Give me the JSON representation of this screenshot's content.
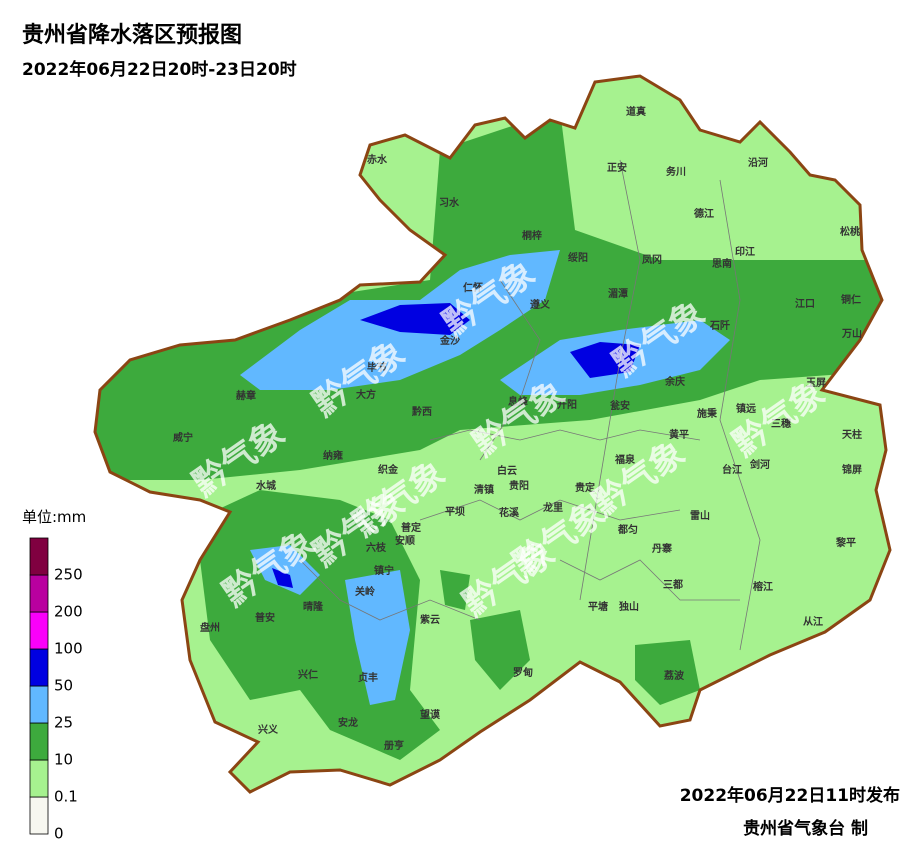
{
  "header": {
    "title": "贵州省降水落区预报图",
    "subtitle": "2022年06月22日20时-23日20时"
  },
  "legend": {
    "unit": "单位:mm",
    "levels": [
      {
        "value": 0,
        "color": "#f7f7f0"
      },
      {
        "value": 0.1,
        "color": "#a6f28f"
      },
      {
        "value": 10,
        "color": "#3daa3d"
      },
      {
        "value": 25,
        "color": "#61b8ff"
      },
      {
        "value": 50,
        "color": "#0000e1"
      },
      {
        "value": 100,
        "color": "#fa00fa"
      },
      {
        "value": 200,
        "color": "#b9009f"
      },
      {
        "value": 250,
        "color": "#800040"
      }
    ]
  },
  "counties": [
    "道真",
    "正安",
    "务川",
    "沿河",
    "赤水",
    "习水",
    "桐梓",
    "德江",
    "松桃",
    "印江",
    "绥阳",
    "凤冈",
    "思南",
    "仁怀",
    "湄潭",
    "江口",
    "铜仁",
    "遵义",
    "万山",
    "金沙",
    "石阡",
    "毕节",
    "大方",
    "余庆",
    "玉屏",
    "赫章",
    "黔西",
    "息烽",
    "开阳",
    "瓮安",
    "施秉",
    "镇远",
    "三穗",
    "天柱",
    "威宁",
    "纳雍",
    "织金",
    "白云",
    "黄平",
    "福泉",
    "剑河",
    "台江",
    "锦屏",
    "水城",
    "清镇",
    "贵阳",
    "贵定",
    "平坝",
    "花溪",
    "龙里",
    "都匀",
    "雷山",
    "普定",
    "安顺",
    "六枝",
    "丹寨",
    "黎平",
    "镇宁",
    "关岭",
    "三都",
    "榕江",
    "晴隆",
    "平塘",
    "独山",
    "紫云",
    "普安",
    "盘州",
    "从江",
    "兴仁",
    "贞丰",
    "罗甸",
    "荔波",
    "望谟",
    "兴义",
    "安龙",
    "册亨"
  ],
  "watermarks": [
    "黔气象",
    "黔气象",
    "黔气象",
    "黔气象",
    "黔气象",
    "黔气象",
    "黔气象",
    "黔气象",
    "黔气象",
    "黔气象",
    "黔气象",
    "黔气象"
  ],
  "footer": {
    "issued": "2022年06月22日11时发布",
    "agency": "贵州省气象台 制"
  }
}
